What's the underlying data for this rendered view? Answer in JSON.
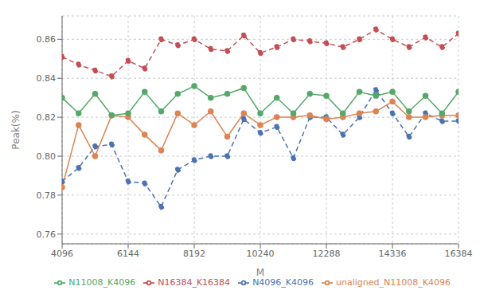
{
  "chart_data": {
    "type": "line",
    "xlabel": "M",
    "ylabel": "Peak(%)",
    "x": [
      4096,
      4608,
      5120,
      5632,
      6144,
      6656,
      7168,
      7680,
      8192,
      8704,
      9216,
      9728,
      10240,
      10752,
      11264,
      11776,
      12288,
      12800,
      13312,
      13824,
      14336,
      14848,
      15360,
      15872,
      16384
    ],
    "series": [
      {
        "name": "N4096_K4096",
        "color": "#4C72B0",
        "line_style": "dashed",
        "marker": "circle",
        "values": [
          0.787,
          0.794,
          0.805,
          0.806,
          0.787,
          0.786,
          0.774,
          0.793,
          0.798,
          0.8,
          0.8,
          0.819,
          0.812,
          0.815,
          0.799,
          0.82,
          0.82,
          0.811,
          0.82,
          0.834,
          0.822,
          0.81,
          0.822,
          0.818,
          0.818
        ]
      },
      {
        "name": "unaligned_N11008_K4096",
        "color": "#DD8452",
        "line_style": "solid",
        "marker": "circle",
        "values": [
          0.784,
          0.816,
          0.8,
          0.821,
          0.82,
          0.811,
          0.803,
          0.822,
          0.816,
          0.823,
          0.81,
          0.822,
          0.816,
          0.82,
          0.82,
          0.821,
          0.819,
          0.82,
          0.822,
          0.823,
          0.828,
          0.82,
          0.82,
          0.821,
          0.821
        ]
      },
      {
        "name": "N11008_K4096",
        "color": "#55A868",
        "line_style": "solid",
        "marker": "circle",
        "values": [
          0.83,
          0.822,
          0.832,
          0.821,
          0.822,
          0.833,
          0.823,
          0.832,
          0.836,
          0.83,
          0.832,
          0.835,
          0.822,
          0.83,
          0.822,
          0.832,
          0.831,
          0.822,
          0.833,
          0.831,
          0.833,
          0.823,
          0.831,
          0.822,
          0.833
        ]
      },
      {
        "name": "N16384_K16384",
        "color": "#C44E52",
        "line_style": "dashed",
        "marker": "circle",
        "values": [
          0.851,
          0.847,
          0.844,
          0.841,
          0.849,
          0.845,
          0.86,
          0.857,
          0.86,
          0.855,
          0.854,
          0.862,
          0.853,
          0.856,
          0.86,
          0.859,
          0.858,
          0.856,
          0.86,
          0.865,
          0.86,
          0.856,
          0.861,
          0.856,
          0.863
        ]
      }
    ],
    "xlim": [
      4096,
      16384
    ],
    "xticks": [
      4096,
      6144,
      8192,
      10240,
      12288,
      14336,
      16384
    ],
    "ylim": [
      0.755,
      0.872
    ],
    "yticks": [
      0.76,
      0.78,
      {
        "value": 0.8,
        "label": "0.80"
      },
      0.82,
      0.84,
      0.86
    ],
    "grid": true,
    "legend": "lower right"
  }
}
